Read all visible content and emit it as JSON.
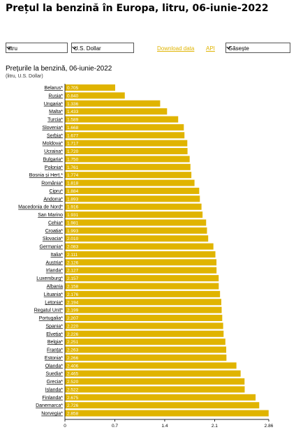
{
  "header": {
    "title": "Prețul la benzină în Europa, litru, 06-iunie-2022"
  },
  "controls": {
    "unit_select": "litru",
    "currency_select": "U.S. Dollar",
    "download_label": "Download data",
    "api_label": "API",
    "search_select": "Găseşte"
  },
  "colors": {
    "bar": "#e0b400",
    "link": "#e0b400"
  },
  "chart_data": {
    "type": "bar",
    "orientation": "horizontal",
    "title": "Prețurile la benzină, 06-iunie-2022",
    "subtitle": "(litru, U.S. Dollar)",
    "categories": [
      "Belarus*",
      "Rusia*",
      "Ungaria*",
      "Malta*",
      "Turcia*",
      "Slovenia*",
      "Serbia*",
      "Moldova*",
      "Ucraina*",
      "Bulgaria*",
      "Polonia*",
      "Bosnia și Herț.*",
      "România*",
      "Cipru*",
      "Andorra*",
      "Macedonia de Nord*",
      "San Marino",
      "Cehia*",
      "Croația*",
      "Slovacia*",
      "Germania*",
      "Italia*",
      "Austria*",
      "Irlanda*",
      "Luxemburg*",
      "Albania",
      "Lituania*",
      "Letonia*",
      "Regatul Unit*",
      "Portugalia*",
      "Spania*",
      "Elveția*",
      "Belgia*",
      "Franța*",
      "Estonia*",
      "Olanda*",
      "Suedia*",
      "Grecia*",
      "Islanda*",
      "Finlanda*",
      "Danemarca*",
      "Norvegia*"
    ],
    "values": [
      0.705,
      0.84,
      1.336,
      1.433,
      1.589,
      1.668,
      1.677,
      1.717,
      1.72,
      1.75,
      1.761,
      1.774,
      1.818,
      1.884,
      1.893,
      1.916,
      1.931,
      1.981,
      1.993,
      2.01,
      2.083,
      2.111,
      2.126,
      2.127,
      2.157,
      2.158,
      2.176,
      2.194,
      2.199,
      2.207,
      2.22,
      2.226,
      2.251,
      2.263,
      2.266,
      2.406,
      2.465,
      2.52,
      2.522,
      2.675,
      2.726,
      2.858
    ],
    "value_labels": [
      "0.705",
      "0.840",
      "1.336",
      "1.433",
      "1.589",
      "1.668",
      "1.677",
      "1.717",
      "1.720",
      "1.750",
      "1.761",
      "1.774",
      "1.818",
      "1.884",
      "1.893",
      "1.916",
      "1.931",
      "1.981",
      "1.993",
      "2.010",
      "2.083",
      "2.111",
      "2.126",
      "2.127",
      "2.157",
      "2.158",
      "2.176",
      "2.194",
      "2.199",
      "2.207",
      "2.220",
      "2.226",
      "2.251",
      "2.263",
      "2.266",
      "2.406",
      "2.465",
      "2.520",
      "2.522",
      "2.675",
      "2.726",
      "2.858"
    ],
    "xticks": [
      0,
      0.7,
      1.4,
      2.1,
      2.86
    ],
    "xtick_labels": [
      "0",
      "0.7",
      "1.4",
      "2.1",
      "2.86"
    ],
    "xlim": [
      0,
      2.86
    ],
    "grid": false,
    "legend": "none"
  }
}
